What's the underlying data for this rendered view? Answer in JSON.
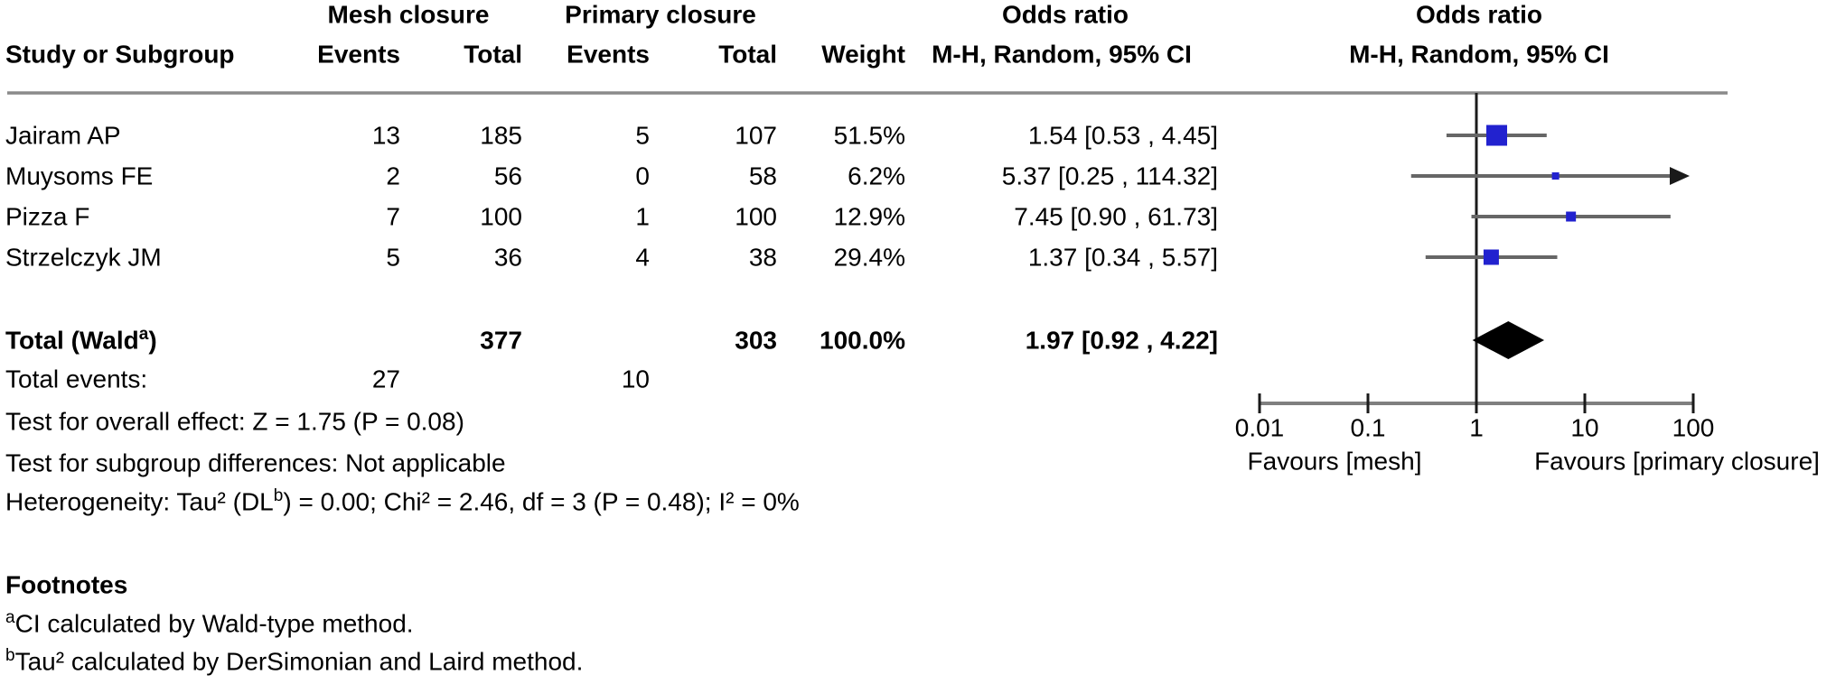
{
  "header": {
    "mesh_group": "Mesh closure",
    "primary_group": "Primary closure",
    "study": "Study or Subgroup",
    "events1": "Events",
    "total1": "Total",
    "events2": "Events",
    "total2": "Total",
    "weight": "Weight",
    "odds_ratio_text_col": "Odds ratio",
    "odds_ratio_plot_col": "Odds ratio",
    "mh_text_col": "M-H, Random, 95% CI",
    "mh_plot_col": "M-H, Random, 95% CI"
  },
  "chart_data": {
    "type": "forest",
    "x_scale": "log",
    "xlim": [
      0.01,
      100
    ],
    "effect_measure": "Odds ratio",
    "method": "M-H, Random, 95% CI",
    "axis": {
      "ticks": [
        0.01,
        0.1,
        1,
        10,
        100
      ],
      "labels": [
        "0.01",
        "0.1",
        "1",
        "10",
        "100"
      ],
      "left_label": "Favours [mesh]",
      "right_label": "Favours [primary closure]"
    },
    "studies": [
      {
        "name": "Jairam AP",
        "mesh_events": 13,
        "mesh_total": 185,
        "primary_events": 5,
        "primary_total": 107,
        "weight": "51.5%",
        "weight_pct": 51.5,
        "or": 1.54,
        "ci_low": 0.53,
        "ci_high": 4.45,
        "or_text": "1.54 [0.53 , 4.45]"
      },
      {
        "name": "Muysoms FE",
        "mesh_events": 2,
        "mesh_total": 56,
        "primary_events": 0,
        "primary_total": 58,
        "weight": "6.2%",
        "weight_pct": 6.2,
        "or": 5.37,
        "ci_low": 0.25,
        "ci_high": 114.32,
        "or_text": "5.37 [0.25 , 114.32]"
      },
      {
        "name": "Pizza F",
        "mesh_events": 7,
        "mesh_total": 100,
        "primary_events": 1,
        "primary_total": 100,
        "weight": "12.9%",
        "weight_pct": 12.9,
        "or": 7.45,
        "ci_low": 0.9,
        "ci_high": 61.73,
        "or_text": "7.45 [0.90 , 61.73]"
      },
      {
        "name": "Strzelczyk JM",
        "mesh_events": 5,
        "mesh_total": 36,
        "primary_events": 4,
        "primary_total": 38,
        "weight": "29.4%",
        "weight_pct": 29.4,
        "or": 1.37,
        "ci_low": 0.34,
        "ci_high": 5.57,
        "or_text": "1.37 [0.34 , 5.57]"
      }
    ],
    "total": {
      "label_prefix": "Total (Wald",
      "label_sup": "a",
      "label_suffix": ")",
      "mesh_total": 377,
      "primary_total": 303,
      "weight": "100.0%",
      "or": 1.97,
      "ci_low": 0.92,
      "ci_high": 4.22,
      "or_text": "1.97 [0.92 , 4.22]"
    },
    "total_events": {
      "label": "Total events:",
      "mesh": 27,
      "primary": 10
    },
    "colors": {
      "marker_blue": "#2222cf",
      "ci_gray": "#666666",
      "axis_gray": "#7f7f7f",
      "line_black": "#1a1a1a"
    }
  },
  "stats": {
    "overall_effect": "Test for overall effect: Z = 1.75 (P = 0.08)",
    "subgroup": "Test for subgroup differences: Not applicable",
    "heterogeneity_prefix": "Heterogeneity: Tau² (DL",
    "heterogeneity_sup": "b",
    "heterogeneity_suffix": ") = 0.00; Chi² = 2.46, df = 3 (P = 0.48); I² = 0%"
  },
  "footnotes": {
    "title": "Footnotes",
    "items": [
      {
        "sup": "a",
        "text": "CI calculated by Wald-type method."
      },
      {
        "sup": "b",
        "text": "Tau² calculated by DerSimonian and Laird method."
      }
    ]
  }
}
